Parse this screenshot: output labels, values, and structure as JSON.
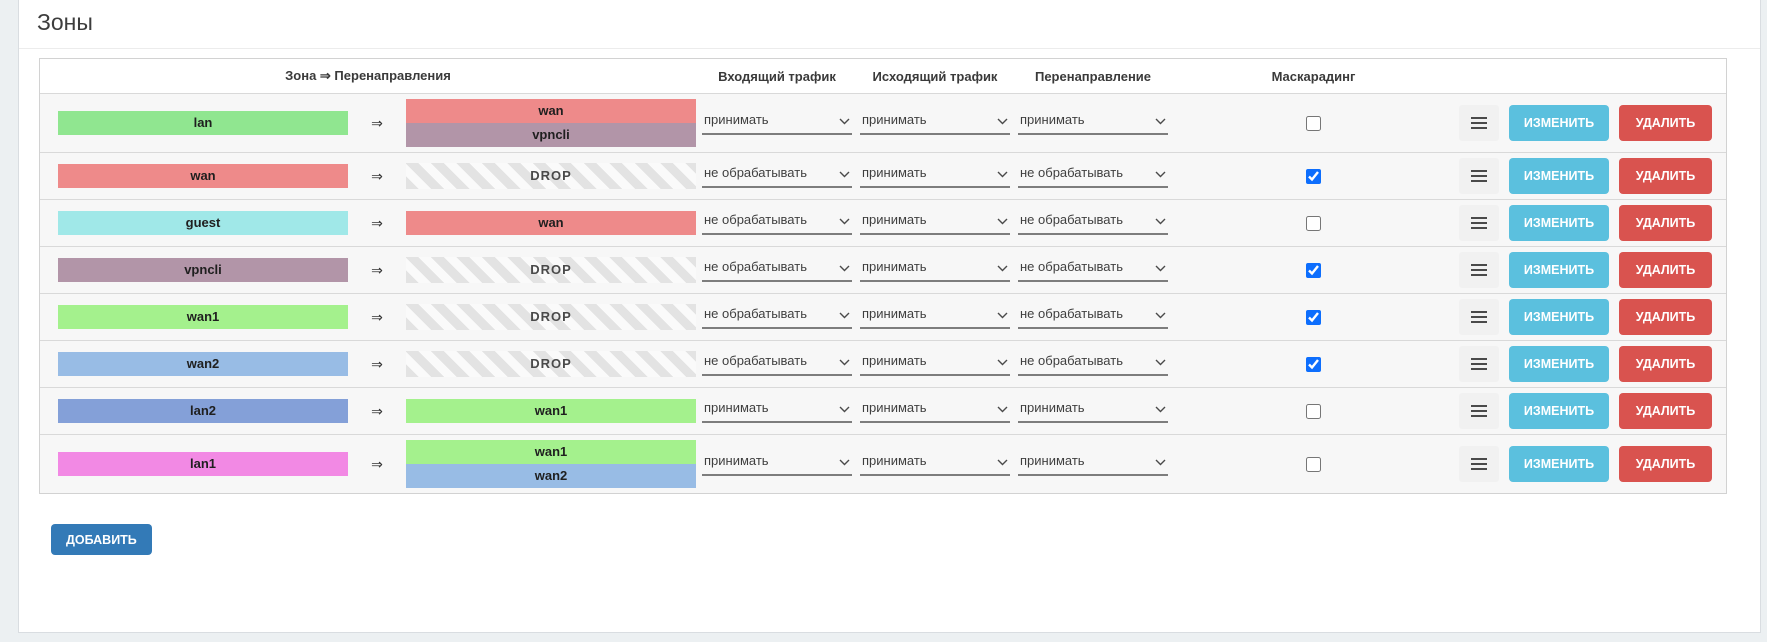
{
  "page": {
    "title": "Зоны"
  },
  "table": {
    "headers": {
      "zone_forwardings": "Зона ⇒ Перенаправления",
      "incoming": "Входящий трафик",
      "outgoing": "Исходящий трафик",
      "forward": "Перенаправление",
      "masquerading": "Маскарадинг"
    },
    "arrow": "⇒",
    "drop_label": "DROP",
    "rows": [
      {
        "zone": "lan",
        "zone_color": "#90e690",
        "drop": false,
        "forwards": [
          {
            "name": "wan",
            "color": "#ee8a8a"
          },
          {
            "name": "vpncli",
            "color": "#b295a8"
          }
        ],
        "incoming": "принимать",
        "outgoing": "принимать",
        "forward": "принимать",
        "masquerade": false
      },
      {
        "zone": "wan",
        "zone_color": "#ee8a8a",
        "drop": true,
        "forwards": [],
        "incoming": "не обрабатывать",
        "outgoing": "принимать",
        "forward": "не обрабатывать",
        "masquerade": true
      },
      {
        "zone": "guest",
        "zone_color": "#a0e8e8",
        "drop": false,
        "forwards": [
          {
            "name": "wan",
            "color": "#ee8a8a"
          }
        ],
        "incoming": "не обрабатывать",
        "outgoing": "принимать",
        "forward": "не обрабатывать",
        "masquerade": false
      },
      {
        "zone": "vpncli",
        "zone_color": "#b295a8",
        "drop": true,
        "forwards": [],
        "incoming": "не обрабатывать",
        "outgoing": "принимать",
        "forward": "не обрабатывать",
        "masquerade": true
      },
      {
        "zone": "wan1",
        "zone_color": "#a4f18d",
        "drop": true,
        "forwards": [],
        "incoming": "не обрабатывать",
        "outgoing": "принимать",
        "forward": "не обрабатывать",
        "masquerade": true
      },
      {
        "zone": "wan2",
        "zone_color": "#98bce5",
        "drop": true,
        "forwards": [],
        "incoming": "не обрабатывать",
        "outgoing": "принимать",
        "forward": "не обрабатывать",
        "masquerade": true
      },
      {
        "zone": "lan2",
        "zone_color": "#84a0d8",
        "drop": false,
        "forwards": [
          {
            "name": "wan1",
            "color": "#a4f18d"
          }
        ],
        "incoming": "принимать",
        "outgoing": "принимать",
        "forward": "принимать",
        "masquerade": false
      },
      {
        "zone": "lan1",
        "zone_color": "#f289e4",
        "drop": false,
        "forwards": [
          {
            "name": "wan1",
            "color": "#a4f18d"
          },
          {
            "name": "wan2",
            "color": "#98bce5"
          }
        ],
        "incoming": "принимать",
        "outgoing": "принимать",
        "forward": "принимать",
        "masquerade": false
      }
    ]
  },
  "buttons": {
    "edit": "ИЗМЕНИТЬ",
    "delete": "УДАЛИТЬ",
    "add": "ДОБАВИТЬ"
  },
  "colors": {
    "edit_button": "#5bc0de",
    "delete_button": "#d9534f",
    "add_button": "#337ab7",
    "checkbox_checked": "#0d6efd"
  }
}
